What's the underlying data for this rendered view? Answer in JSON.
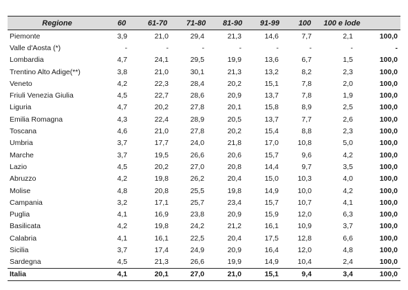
{
  "headers": [
    "Regione",
    "60",
    "61-70",
    "71-80",
    "81-90",
    "91-99",
    "100",
    "100 e lode",
    ""
  ],
  "rows": [
    {
      "name": "Piemonte",
      "values": [
        "3,9",
        "21,0",
        "29,4",
        "21,3",
        "14,6",
        "7,7",
        "2,1",
        "100,0"
      ]
    },
    {
      "name": "Valle d'Aosta (*)",
      "values": [
        "-",
        "-",
        "-",
        "-",
        "-",
        "-",
        "-",
        "-"
      ]
    },
    {
      "name": "Lombardia",
      "values": [
        "4,7",
        "24,1",
        "29,5",
        "19,9",
        "13,6",
        "6,7",
        "1,5",
        "100,0"
      ]
    },
    {
      "name": "Trentino Alto Adige(**)",
      "values": [
        "3,8",
        "21,0",
        "30,1",
        "21,3",
        "13,2",
        "8,2",
        "2,3",
        "100,0"
      ]
    },
    {
      "name": "Veneto",
      "values": [
        "4,2",
        "22,3",
        "28,4",
        "20,2",
        "15,1",
        "7,8",
        "2,0",
        "100,0"
      ]
    },
    {
      "name": "Friuli Venezia Giulia",
      "values": [
        "4,5",
        "22,7",
        "28,6",
        "20,9",
        "13,7",
        "7,8",
        "1,9",
        "100,0"
      ]
    },
    {
      "name": "Liguria",
      "values": [
        "4,7",
        "20,2",
        "27,8",
        "20,1",
        "15,8",
        "8,9",
        "2,5",
        "100,0"
      ]
    },
    {
      "name": "Emilia Romagna",
      "values": [
        "4,3",
        "22,4",
        "28,9",
        "20,5",
        "13,7",
        "7,7",
        "2,6",
        "100,0"
      ]
    },
    {
      "name": "Toscana",
      "values": [
        "4,6",
        "21,0",
        "27,8",
        "20,2",
        "15,4",
        "8,8",
        "2,3",
        "100,0"
      ]
    },
    {
      "name": "Umbria",
      "values": [
        "3,7",
        "17,7",
        "24,0",
        "21,8",
        "17,0",
        "10,8",
        "5,0",
        "100,0"
      ]
    },
    {
      "name": "Marche",
      "values": [
        "3,7",
        "19,5",
        "26,6",
        "20,6",
        "15,7",
        "9,6",
        "4,2",
        "100,0"
      ]
    },
    {
      "name": "Lazio",
      "values": [
        "4,5",
        "20,2",
        "27,0",
        "20,8",
        "14,4",
        "9,7",
        "3,5",
        "100,0"
      ]
    },
    {
      "name": "Abruzzo",
      "values": [
        "4,2",
        "19,8",
        "26,2",
        "20,4",
        "15,0",
        "10,3",
        "4,0",
        "100,0"
      ]
    },
    {
      "name": "Molise",
      "values": [
        "4,8",
        "20,8",
        "25,5",
        "19,8",
        "14,9",
        "10,0",
        "4,2",
        "100,0"
      ]
    },
    {
      "name": "Campania",
      "values": [
        "3,2",
        "17,1",
        "25,7",
        "23,4",
        "15,7",
        "10,7",
        "4,1",
        "100,0"
      ]
    },
    {
      "name": "Puglia",
      "values": [
        "4,1",
        "16,9",
        "23,8",
        "20,9",
        "15,9",
        "12,0",
        "6,3",
        "100,0"
      ]
    },
    {
      "name": "Basilicata",
      "values": [
        "4,2",
        "19,8",
        "24,2",
        "21,2",
        "16,1",
        "10,9",
        "3,7",
        "100,0"
      ]
    },
    {
      "name": "Calabria",
      "values": [
        "4,1",
        "16,1",
        "22,5",
        "20,4",
        "17,5",
        "12,8",
        "6,6",
        "100,0"
      ]
    },
    {
      "name": "Sicilia",
      "values": [
        "3,7",
        "17,4",
        "24,9",
        "20,9",
        "16,4",
        "12,0",
        "4,8",
        "100,0"
      ]
    },
    {
      "name": "Sardegna",
      "values": [
        "4,5",
        "21,3",
        "26,6",
        "19,9",
        "14,9",
        "10,4",
        "2,4",
        "100,0"
      ]
    }
  ],
  "total": {
    "name": "Italia",
    "values": [
      "4,1",
      "20,1",
      "27,0",
      "21,0",
      "15,1",
      "9,4",
      "3,4",
      "100,0"
    ]
  }
}
